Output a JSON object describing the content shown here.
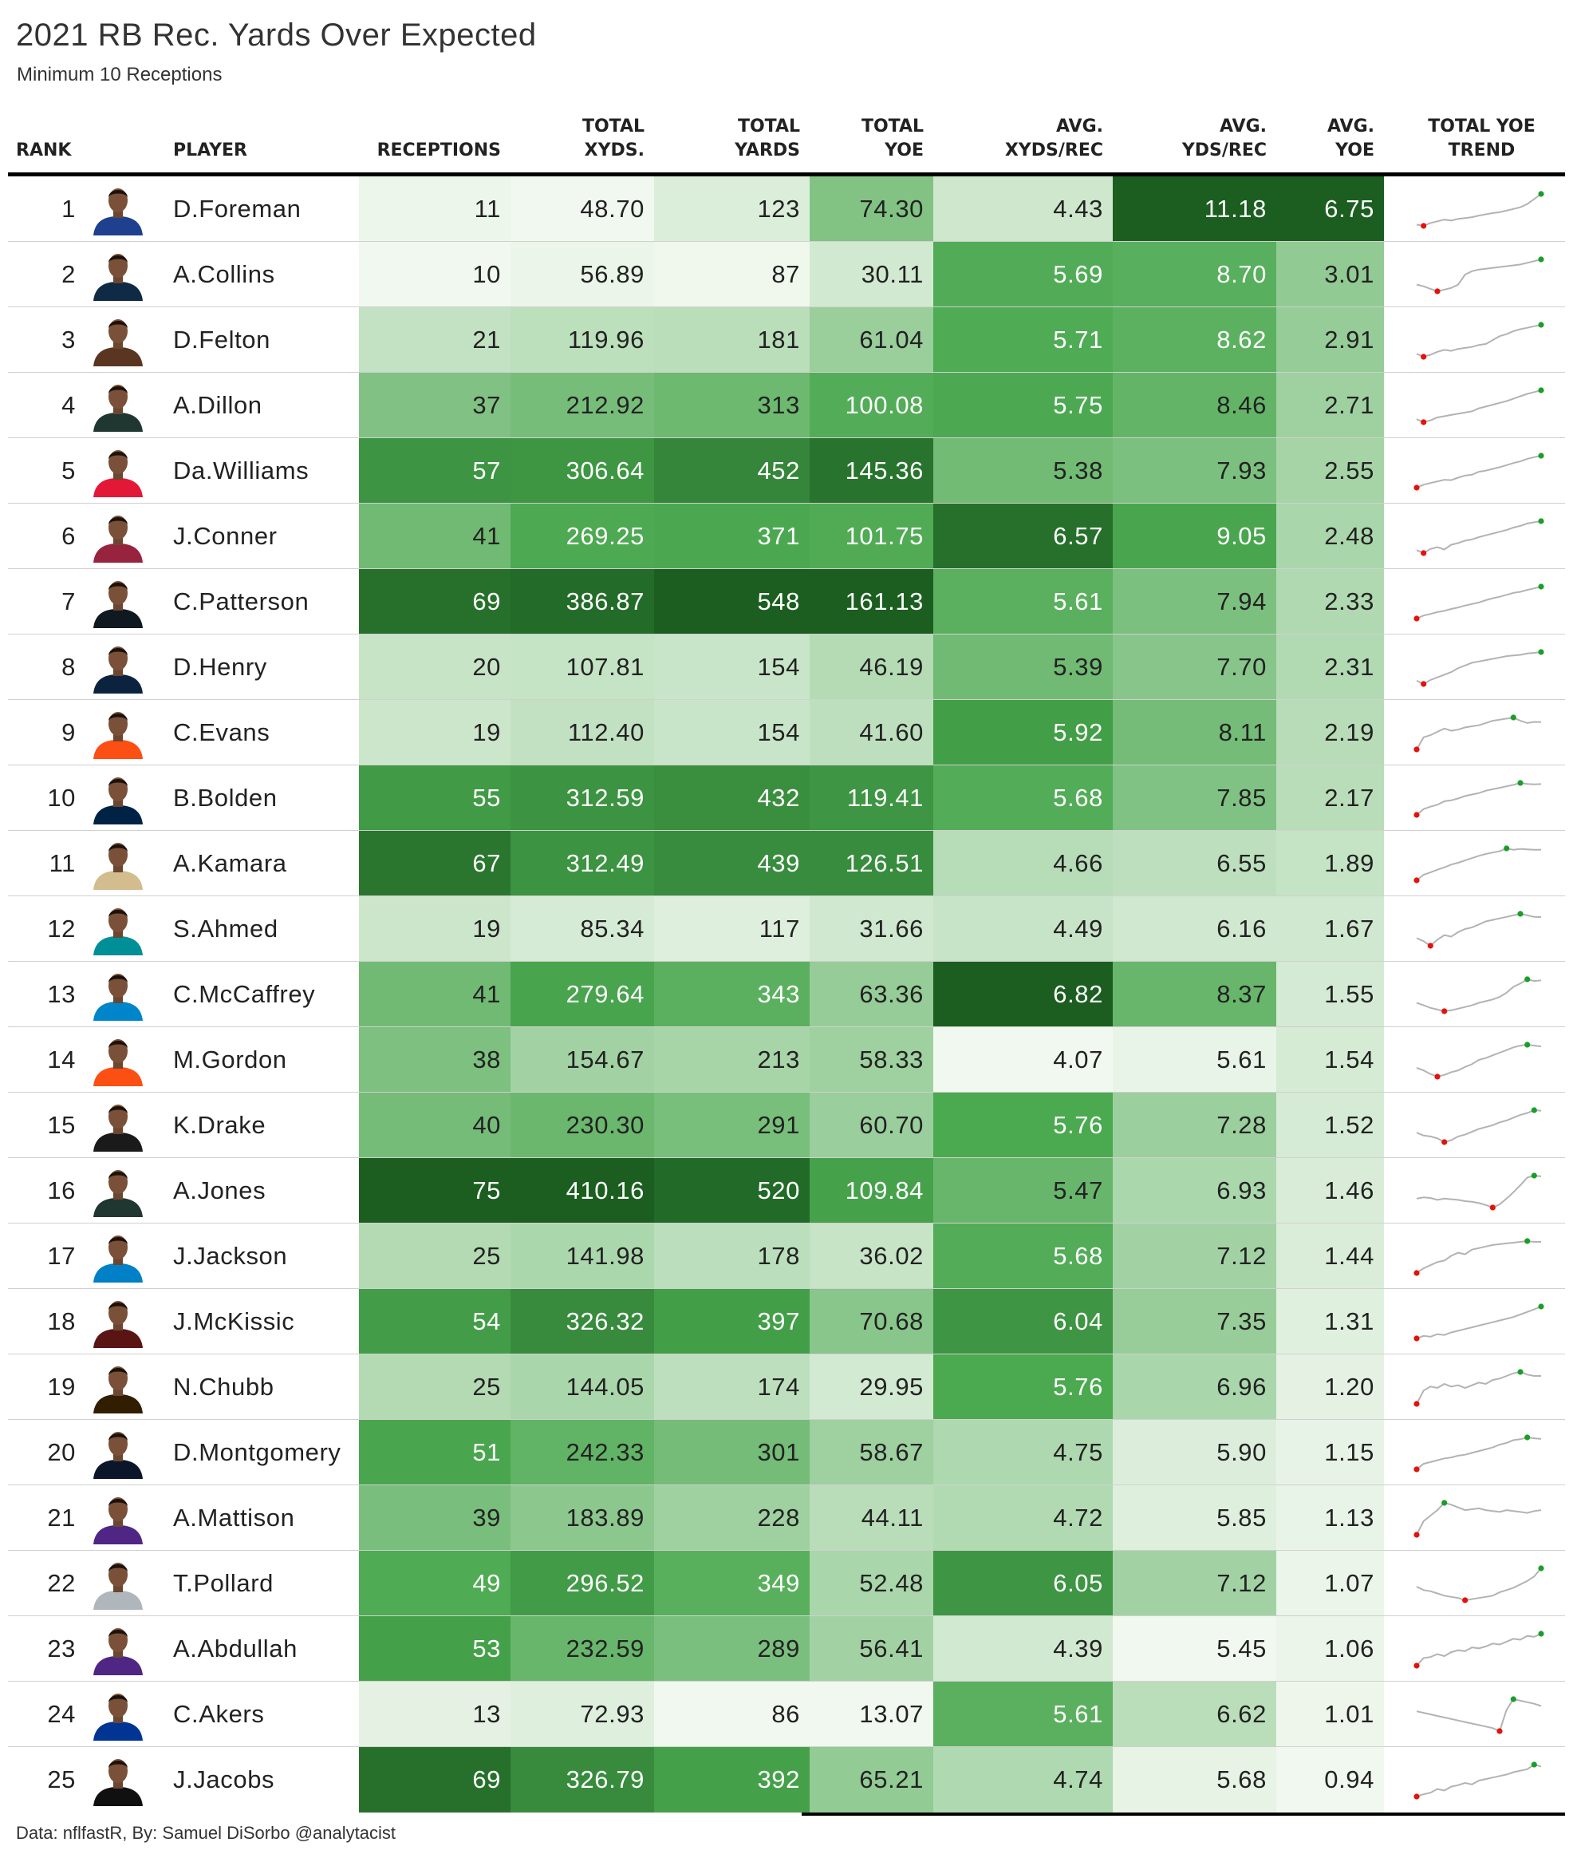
{
  "title": "2021 RB Rec. Yards Over Expected",
  "subtitle": "Minimum 10 Receptions",
  "caption": "Data: nflfastR, By: Samuel DiSorbo @analytacist",
  "colors": {
    "scale_light": "#f2f9f0",
    "scale_dark": "#1a5e1f",
    "spark_line": "#b0b0b0",
    "spark_min": "#e3120b",
    "spark_max": "#1a9e2a"
  },
  "columns": [
    {
      "key": "rank",
      "label": "RANK"
    },
    {
      "key": "player",
      "label": "PLAYER"
    },
    {
      "key": "receptions",
      "label": "RECEPTIONS"
    },
    {
      "key": "total_xyds",
      "label": "TOTAL\nXYDS."
    },
    {
      "key": "total_yards",
      "label": "TOTAL\nYARDS"
    },
    {
      "key": "total_yoe",
      "label": "TOTAL\nYOE"
    },
    {
      "key": "avg_xyds_rec",
      "label": "AVG.\nXYDS/REC"
    },
    {
      "key": "avg_yds_rec",
      "label": "AVG.\nYDS/REC"
    },
    {
      "key": "avg_yoe",
      "label": "AVG.\nYOE"
    },
    {
      "key": "trend",
      "label": "TOTAL YOE\nTREND"
    }
  ],
  "chart_data": {
    "type": "table",
    "rows": [
      {
        "rank": "1",
        "player": "D.Foreman",
        "receptions": "11",
        "total_xyds": "48.70",
        "total_yards": "123",
        "total_yoe": "74.30",
        "avg_xyds_rec": "4.43",
        "avg_yds_rec": "11.18",
        "avg_yoe": "6.75",
        "jersey": "#1f3f8f",
        "trend": [
          0,
          -3,
          4,
          8,
          12,
          10,
          14,
          16,
          18,
          22,
          25,
          28,
          30,
          34,
          38,
          42,
          50,
          62,
          74.3
        ]
      },
      {
        "rank": "2",
        "player": "A.Collins",
        "receptions": "10",
        "total_xyds": "56.89",
        "total_yards": "87",
        "total_yoe": "30.11",
        "avg_xyds_rec": "5.69",
        "avg_yds_rec": "8.70",
        "avg_yoe": "3.01",
        "jersey": "#0f2a45",
        "trend": [
          0,
          -2,
          -5,
          -8,
          -6,
          -4,
          0,
          12,
          16,
          18,
          19,
          20,
          21,
          22,
          23,
          24,
          26,
          28,
          30.1
        ]
      },
      {
        "rank": "3",
        "player": "D.Felton",
        "receptions": "21",
        "total_xyds": "119.96",
        "total_yards": "181",
        "total_yoe": "61.04",
        "avg_xyds_rec": "5.71",
        "avg_yds_rec": "8.62",
        "avg_yoe": "2.91",
        "jersey": "#5a3520",
        "trend": [
          2,
          -4,
          0,
          6,
          10,
          8,
          12,
          14,
          16,
          20,
          22,
          30,
          38,
          42,
          48,
          52,
          55,
          58,
          61
        ]
      },
      {
        "rank": "4",
        "player": "A.Dillon",
        "receptions": "37",
        "total_xyds": "212.92",
        "total_yards": "313",
        "total_yoe": "100.08",
        "avg_xyds_rec": "5.75",
        "avg_yds_rec": "8.46",
        "avg_yoe": "2.71",
        "jersey": "#203731",
        "trend": [
          4,
          -6,
          0,
          10,
          14,
          18,
          22,
          26,
          30,
          40,
          46,
          52,
          58,
          64,
          72,
          80,
          88,
          94,
          100
        ]
      },
      {
        "rank": "5",
        "player": "Da.Williams",
        "receptions": "57",
        "total_xyds": "306.64",
        "total_yards": "452",
        "total_yoe": "145.36",
        "avg_xyds_rec": "5.38",
        "avg_yds_rec": "7.93",
        "avg_yoe": "2.55",
        "jersey": "#e31837",
        "trend": [
          -8,
          6,
          14,
          22,
          30,
          28,
          40,
          50,
          54,
          68,
          74,
          82,
          90,
          100,
          110,
          118,
          130,
          138,
          145
        ]
      },
      {
        "rank": "6",
        "player": "J.Conner",
        "receptions": "41",
        "total_xyds": "269.25",
        "total_yards": "371",
        "total_yoe": "101.75",
        "avg_xyds_rec": "6.57",
        "avg_yds_rec": "9.05",
        "avg_yoe": "2.48",
        "jersey": "#97233f",
        "trend": [
          4,
          -6,
          8,
          14,
          6,
          22,
          28,
          36,
          40,
          48,
          54,
          60,
          66,
          72,
          80,
          86,
          94,
          98,
          101.8
        ]
      },
      {
        "rank": "7",
        "player": "C.Patterson",
        "receptions": "69",
        "total_xyds": "386.87",
        "total_yards": "548",
        "total_yoe": "161.13",
        "avg_xyds_rec": "5.61",
        "avg_yds_rec": "7.94",
        "avg_yoe": "2.33",
        "jersey": "#101820",
        "trend": [
          -6,
          10,
          18,
          28,
          34,
          44,
          52,
          62,
          70,
          78,
          90,
          100,
          108,
          118,
          128,
          134,
          144,
          152,
          161
        ]
      },
      {
        "rank": "8",
        "player": "D.Henry",
        "receptions": "20",
        "total_xyds": "107.81",
        "total_yards": "154",
        "total_yoe": "46.19",
        "avg_xyds_rec": "5.39",
        "avg_yds_rec": "7.70",
        "avg_yoe": "2.31",
        "jersey": "#0c2340",
        "trend": [
          3,
          -2,
          4,
          8,
          12,
          16,
          22,
          26,
          30,
          32,
          34,
          36,
          38,
          40,
          41,
          42,
          44,
          45,
          46.2
        ]
      },
      {
        "rank": "9",
        "player": "C.Evans",
        "receptions": "19",
        "total_xyds": "112.40",
        "total_yards": "154",
        "total_yoe": "41.60",
        "avg_xyds_rec": "5.92",
        "avg_yds_rec": "8.11",
        "avg_yoe": "2.19",
        "jersey": "#fb4f14",
        "trend": [
          -8,
          14,
          18,
          24,
          30,
          26,
          28,
          32,
          34,
          36,
          40,
          44,
          46,
          48,
          50,
          44,
          40,
          42,
          41.6
        ]
      },
      {
        "rank": "10",
        "player": "B.Bolden",
        "receptions": "55",
        "total_xyds": "312.59",
        "total_yards": "432",
        "total_yoe": "119.41",
        "avg_xyds_rec": "5.68",
        "avg_yds_rec": "7.85",
        "avg_yoe": "2.17",
        "jersey": "#002244",
        "trend": [
          -8,
          16,
          26,
          34,
          48,
          52,
          60,
          70,
          76,
          82,
          92,
          98,
          104,
          110,
          116,
          124,
          120,
          118,
          119.4
        ]
      },
      {
        "rank": "11",
        "player": "A.Kamara",
        "receptions": "67",
        "total_xyds": "312.49",
        "total_yards": "439",
        "total_yoe": "126.51",
        "avg_xyds_rec": "4.66",
        "avg_yds_rec": "6.55",
        "avg_yoe": "1.89",
        "jersey": "#d3bc8d",
        "trend": [
          -6,
          18,
          28,
          40,
          50,
          62,
          70,
          80,
          90,
          100,
          108,
          114,
          120,
          132,
          126,
          130,
          128,
          126,
          126.5
        ]
      },
      {
        "rank": "12",
        "player": "S.Ahmed",
        "receptions": "19",
        "total_xyds": "85.34",
        "total_yards": "117",
        "total_yoe": "31.66",
        "avg_xyds_rec": "4.49",
        "avg_yds_rec": "6.16",
        "avg_yoe": "1.67",
        "jersey": "#008e97",
        "trend": [
          4,
          0,
          -6,
          2,
          8,
          6,
          12,
          16,
          18,
          22,
          26,
          28,
          30,
          32,
          34,
          36,
          34,
          32,
          31.7
        ]
      },
      {
        "rank": "13",
        "player": "C.McCaffrey",
        "receptions": "41",
        "total_xyds": "279.64",
        "total_yards": "343",
        "total_yoe": "63.36",
        "avg_xyds_rec": "6.82",
        "avg_yds_rec": "8.37",
        "avg_yoe": "1.55",
        "jersey": "#0085ca",
        "trend": [
          10,
          4,
          -2,
          -6,
          -10,
          -8,
          -4,
          0,
          4,
          10,
          14,
          18,
          24,
          34,
          48,
          56,
          66,
          62,
          63.4
        ]
      },
      {
        "rank": "14",
        "player": "M.Gordon",
        "receptions": "38",
        "total_xyds": "154.67",
        "total_yards": "213",
        "total_yoe": "58.33",
        "avg_xyds_rec": "4.07",
        "avg_yds_rec": "5.61",
        "avg_yoe": "1.54",
        "jersey": "#fb4f14",
        "trend": [
          10,
          4,
          -4,
          -10,
          -6,
          0,
          4,
          12,
          18,
          28,
          32,
          38,
          44,
          50,
          56,
          60,
          62,
          60,
          58.3
        ]
      },
      {
        "rank": "15",
        "player": "K.Drake",
        "receptions": "40",
        "total_xyds": "230.30",
        "total_yards": "291",
        "total_yoe": "60.70",
        "avg_xyds_rec": "5.76",
        "avg_yds_rec": "7.28",
        "avg_yoe": "1.52",
        "jersey": "#1a1a1a",
        "trend": [
          14,
          8,
          6,
          2,
          -6,
          -2,
          6,
          10,
          16,
          22,
          26,
          30,
          36,
          40,
          46,
          52,
          56,
          62,
          60.7
        ]
      },
      {
        "rank": "16",
        "player": "A.Jones",
        "receptions": "75",
        "total_xyds": "410.16",
        "total_yards": "520",
        "total_yoe": "109.84",
        "avg_xyds_rec": "5.47",
        "avg_yds_rec": "6.93",
        "avg_yoe": "1.46",
        "jersey": "#203731",
        "trend": [
          40,
          44,
          42,
          36,
          40,
          38,
          36,
          32,
          30,
          26,
          20,
          12,
          22,
          40,
          60,
          82,
          106,
          112,
          109.8
        ]
      },
      {
        "rank": "17",
        "player": "J.Jackson",
        "receptions": "25",
        "total_xyds": "141.98",
        "total_yards": "178",
        "total_yoe": "36.02",
        "avg_xyds_rec": "5.68",
        "avg_yds_rec": "7.12",
        "avg_yoe": "1.44",
        "jersey": "#0080c6",
        "trend": [
          -4,
          2,
          6,
          10,
          12,
          18,
          22,
          20,
          26,
          28,
          30,
          32,
          33,
          34,
          35,
          36,
          37,
          36,
          36
        ]
      },
      {
        "rank": "18",
        "player": "J.McKissic",
        "receptions": "54",
        "total_xyds": "326.32",
        "total_yards": "397",
        "total_yoe": "70.68",
        "avg_xyds_rec": "6.04",
        "avg_yds_rec": "7.35",
        "avg_yoe": "1.31",
        "jersey": "#5a1414",
        "trend": [
          -4,
          2,
          0,
          6,
          4,
          10,
          14,
          18,
          22,
          26,
          30,
          34,
          38,
          42,
          46,
          52,
          58,
          64,
          70.7
        ]
      },
      {
        "rank": "19",
        "player": "N.Chubb",
        "receptions": "25",
        "total_xyds": "144.05",
        "total_yards": "174",
        "total_yoe": "29.95",
        "avg_xyds_rec": "5.76",
        "avg_yds_rec": "6.96",
        "avg_yoe": "1.20",
        "jersey": "#311d00",
        "trend": [
          -12,
          8,
          14,
          12,
          18,
          14,
          16,
          12,
          16,
          20,
          18,
          24,
          26,
          30,
          34,
          36,
          32,
          30,
          30
        ]
      },
      {
        "rank": "20",
        "player": "D.Montgomery",
        "receptions": "51",
        "total_xyds": "242.33",
        "total_yards": "301",
        "total_yoe": "58.67",
        "avg_xyds_rec": "4.75",
        "avg_yds_rec": "5.90",
        "avg_yoe": "1.15",
        "jersey": "#0b162a",
        "trend": [
          -8,
          4,
          8,
          12,
          16,
          18,
          22,
          24,
          28,
          32,
          36,
          40,
          46,
          50,
          56,
          58,
          62,
          60,
          58.7
        ]
      },
      {
        "rank": "21",
        "player": "A.Mattison",
        "receptions": "39",
        "total_xyds": "183.89",
        "total_yards": "228",
        "total_yoe": "44.11",
        "avg_xyds_rec": "4.72",
        "avg_yds_rec": "5.85",
        "avg_yoe": "1.13",
        "jersey": "#4f2683",
        "trend": [
          -10,
          20,
          32,
          44,
          60,
          56,
          50,
          44,
          46,
          48,
          44,
          42,
          40,
          44,
          42,
          40,
          38,
          42,
          44.1
        ]
      },
      {
        "rank": "22",
        "player": "T.Pollard",
        "receptions": "49",
        "total_xyds": "296.52",
        "total_yards": "349",
        "total_yoe": "52.48",
        "avg_xyds_rec": "6.05",
        "avg_yds_rec": "7.12",
        "avg_yoe": "1.07",
        "jersey": "#b0b7bc",
        "trend": [
          20,
          14,
          12,
          8,
          4,
          2,
          0,
          -4,
          -2,
          0,
          2,
          4,
          10,
          14,
          18,
          24,
          30,
          38,
          52.5
        ]
      },
      {
        "rank": "23",
        "player": "A.Abdullah",
        "receptions": "53",
        "total_xyds": "232.59",
        "total_yards": "289",
        "total_yoe": "56.41",
        "avg_xyds_rec": "4.39",
        "avg_yds_rec": "5.45",
        "avg_yoe": "1.06",
        "jersey": "#4f2683",
        "trend": [
          -10,
          6,
          8,
          14,
          10,
          18,
          22,
          20,
          28,
          26,
          30,
          36,
          34,
          40,
          46,
          44,
          52,
          50,
          56.4
        ]
      },
      {
        "rank": "24",
        "player": "C.Akers",
        "receptions": "13",
        "total_xyds": "72.93",
        "total_yards": "86",
        "total_yoe": "13.07",
        "avg_xyds_rec": "5.61",
        "avg_yds_rec": "6.62",
        "avg_yoe": "1.01",
        "jersey": "#003594",
        "trend": [
          6,
          4,
          2,
          0,
          -2,
          -4,
          -6,
          -8,
          -10,
          -12,
          -14,
          -16,
          -20,
          8,
          22,
          20,
          18,
          16,
          13.1
        ]
      },
      {
        "rank": "25",
        "player": "J.Jacobs",
        "receptions": "69",
        "total_xyds": "326.79",
        "total_yards": "392",
        "total_yoe": "65.21",
        "avg_xyds_rec": "4.74",
        "avg_yds_rec": "5.68",
        "avg_yoe": "0.94",
        "jersey": "#101010",
        "trend": [
          -14,
          -8,
          -4,
          6,
          2,
          12,
          16,
          22,
          18,
          28,
          32,
          36,
          40,
          44,
          50,
          54,
          58,
          70,
          65.2
        ]
      }
    ]
  }
}
